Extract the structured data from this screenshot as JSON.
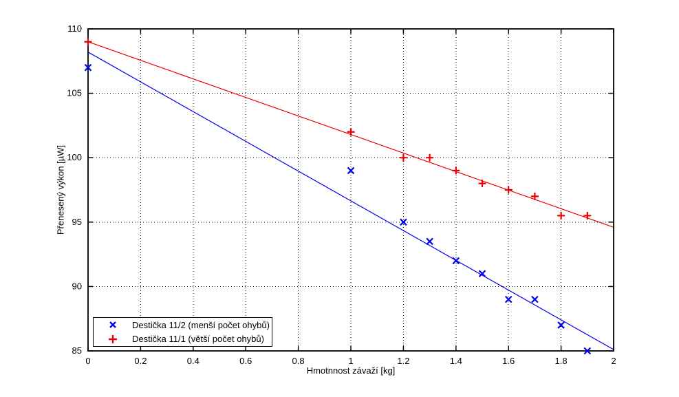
{
  "chart_data": {
    "type": "scatter",
    "title": "",
    "xlabel": "Hmotnnost závaží [kg]",
    "ylabel": "Přenesený výkon [µW]",
    "xlim": [
      0,
      2
    ],
    "ylim": [
      85,
      110
    ],
    "xticks": [
      0,
      0.2,
      0.4,
      0.6,
      0.8,
      1,
      1.2,
      1.4,
      1.6,
      1.8,
      2
    ],
    "xtick_labels": [
      "0",
      "0.2",
      "0.4",
      "0.6",
      "0.8",
      "1",
      "1.2",
      "1.4",
      "1.6",
      "1.8",
      "2"
    ],
    "yticks": [
      85,
      90,
      95,
      100,
      105,
      110
    ],
    "ytick_labels": [
      "85",
      "90",
      "95",
      "100",
      "105",
      "110"
    ],
    "grid": true,
    "grid_style": "dotted",
    "legend_position": "lower-left",
    "axis_color": "#000000",
    "background_color": "#ffffff",
    "series": [
      {
        "name": "Destička 11/2 (menší počet ohybů)",
        "marker": "x",
        "color": "#0000ee",
        "points": [
          [
            0,
            107
          ],
          [
            1,
            99
          ],
          [
            1.2,
            95
          ],
          [
            1.3,
            93.5
          ],
          [
            1.4,
            92
          ],
          [
            1.5,
            91
          ],
          [
            1.6,
            89
          ],
          [
            1.7,
            89
          ],
          [
            1.8,
            87
          ],
          [
            1.9,
            85
          ]
        ],
        "fit_line": {
          "x": [
            0,
            2
          ],
          "y": [
            108.2,
            85.1
          ]
        }
      },
      {
        "name": "Destička 11/1 (větší počet ohybů)",
        "marker": "+",
        "color": "#ee0000",
        "points": [
          [
            0,
            109
          ],
          [
            1,
            102
          ],
          [
            1.2,
            100
          ],
          [
            1.3,
            100
          ],
          [
            1.4,
            99
          ],
          [
            1.5,
            98
          ],
          [
            1.6,
            97.5
          ],
          [
            1.7,
            97
          ],
          [
            1.8,
            95.5
          ],
          [
            1.9,
            95.5
          ]
        ],
        "fit_line": {
          "x": [
            0,
            2
          ],
          "y": [
            109.0,
            94.6
          ]
        }
      }
    ]
  }
}
